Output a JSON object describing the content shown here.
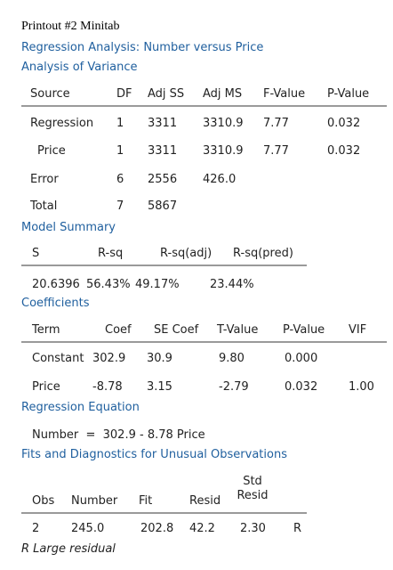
{
  "title": "Printout #2 Minitab",
  "heading": "Regression Analysis: Number versus Price",
  "anova": {
    "title": "Analysis of Variance",
    "columns": [
      "Source",
      "DF",
      "Adj SS",
      "Adj MS",
      "F-Value",
      "P-Value"
    ],
    "rows": [
      [
        "Regression",
        "1",
        "3311",
        "3310.9",
        "7.77",
        "0.032"
      ],
      [
        "Price",
        "1",
        "3311",
        "3310.9",
        "7.77",
        "0.032"
      ],
      [
        "Error",
        "6",
        "2556",
        "426.0"
      ],
      [
        "Total",
        "7",
        "5867"
      ]
    ]
  },
  "model_summary": {
    "title": "Model Summary",
    "columns": [
      "S",
      "R-sq",
      "R-sq(adj)",
      "R-sq(pred)"
    ],
    "rows": [
      [
        "20.6396",
        "56.43%",
        "49.17%",
        "23.44%"
      ]
    ]
  },
  "coefficients": {
    "title": "Coefficients",
    "columns": [
      "Term",
      "Coef",
      "SE Coef",
      "T-Value",
      "P-Value",
      "VIF"
    ],
    "rows": [
      [
        "Constant",
        "302.9",
        "30.9",
        "9.80",
        "0.000"
      ],
      [
        "Price",
        "-8.78",
        "3.15",
        "-2.79",
        "0.032",
        "1.00"
      ]
    ]
  },
  "regression_equation": {
    "title": "Regression Equation",
    "equation": "Number  =  302.9 - 8.78 Price"
  },
  "fits": {
    "title": "Fits and Diagnostics for Unusual Observations",
    "columns": [
      "Obs",
      "Number",
      "Fit",
      "Resid",
      "Std Resid"
    ],
    "rows": [
      [
        "2",
        "245.0",
        "202.8",
        "42.2",
        "2.30",
        "R"
      ]
    ]
  },
  "footnote": "R Large residual"
}
